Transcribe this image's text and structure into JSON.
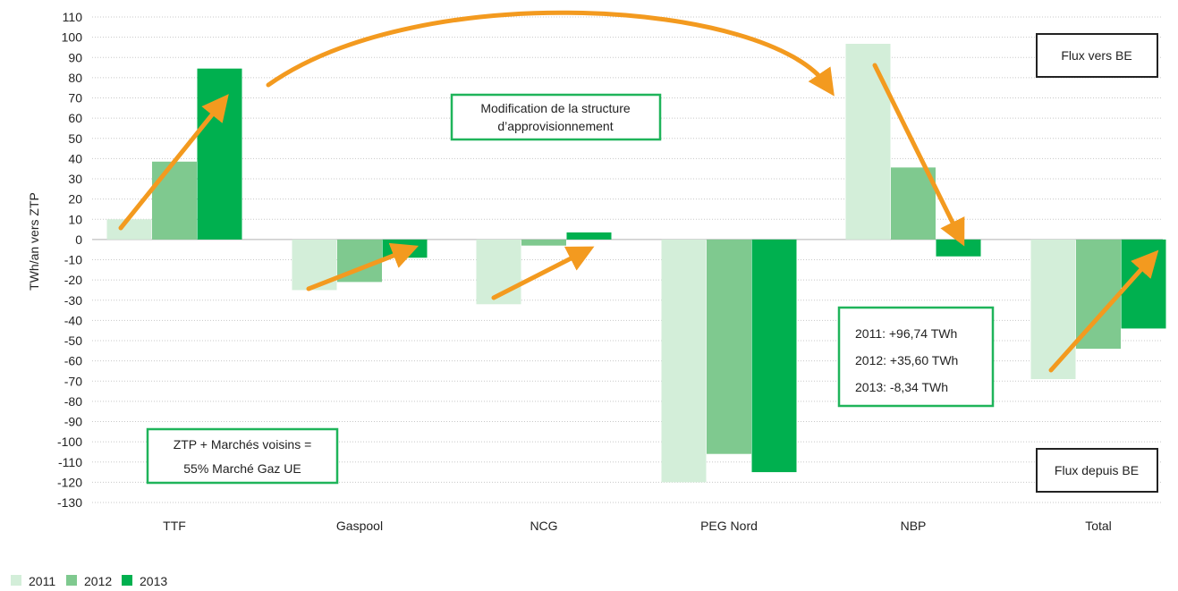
{
  "chart_data": {
    "type": "bar",
    "ylabel": "TWh/an vers ZTP",
    "xlabel": "",
    "ylim": [
      -130,
      110
    ],
    "yticks": [
      110,
      100,
      90,
      80,
      70,
      60,
      50,
      40,
      30,
      20,
      10,
      0,
      -10,
      -20,
      -30,
      -40,
      -50,
      -60,
      -70,
      -80,
      -90,
      -100,
      -110,
      -120,
      -130
    ],
    "categories": [
      "TTF",
      "Gaspool",
      "NCG",
      "PEG Nord",
      "NBP",
      "Total"
    ],
    "series": [
      {
        "name": "2011",
        "color": "#d3eed9",
        "values": [
          10,
          -25,
          -32,
          -120,
          96.74,
          -69
        ]
      },
      {
        "name": "2012",
        "color": "#7fc98f",
        "values": [
          38.5,
          -21,
          -3,
          -106,
          35.6,
          -54
        ]
      },
      {
        "name": "2013",
        "color": "#00b04f",
        "values": [
          84.5,
          -9,
          3.5,
          -115,
          -8.34,
          -44
        ]
      }
    ],
    "grid": true,
    "legend_position": "bottom-left",
    "annotations": {
      "structure_line1": "Modification de la structure",
      "structure_line2": "d’approvisionnement",
      "ztp_line1": "ZTP + Marchés voisins =",
      "ztp_line2": "55% Marché Gaz UE",
      "nbp_2011": "2011: +96,74 TWh",
      "nbp_2012": "2012: +35,60 TWh",
      "nbp_2013": "2013: -8,34 TWh",
      "flux_vers": "Flux vers BE",
      "flux_depuis": "Flux depuis BE"
    },
    "arrow_color": "#f39a1f",
    "box_color": "#1fb45a"
  }
}
